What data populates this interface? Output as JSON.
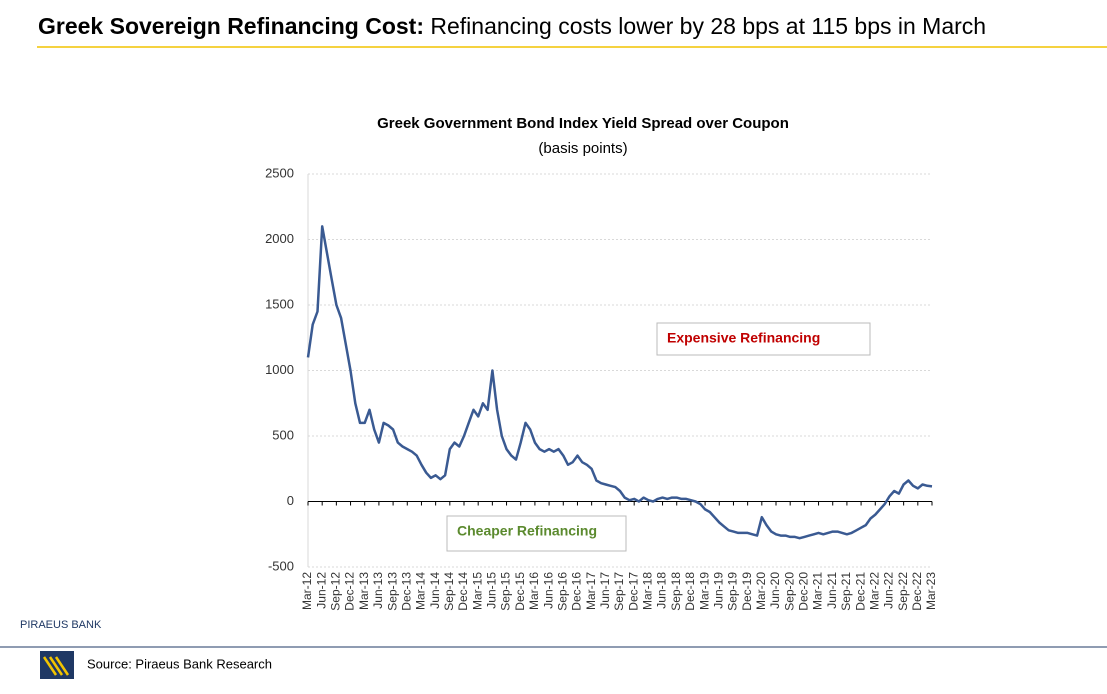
{
  "header": {
    "title": "Greek Sovereign Refinancing Cost:",
    "subtitle": "Refinancing costs lower by 28 bps at 115 bps in March"
  },
  "chart_data": {
    "type": "line",
    "title": "Greek Government Bond Index Yield Spread over Coupon",
    "subtitle": "(basis points)",
    "categories": [
      "Mar-12",
      null,
      null,
      "Jun-12",
      null,
      null,
      "Sep-12",
      null,
      null,
      "Dec-12",
      null,
      null,
      "Mar-13",
      null,
      null,
      "Jun-13",
      null,
      null,
      "Sep-13",
      null,
      null,
      "Dec-13",
      null,
      null,
      "Mar-14",
      null,
      null,
      "Jun-14",
      null,
      null,
      "Sep-14",
      null,
      null,
      "Dec-14",
      null,
      null,
      "Mar-15",
      null,
      null,
      "Jun-15",
      null,
      null,
      "Sep-15",
      null,
      null,
      "Dec-15",
      null,
      null,
      "Mar-16",
      null,
      null,
      "Jun-16",
      null,
      null,
      "Sep-16",
      null,
      null,
      "Dec-16",
      null,
      null,
      "Mar-17",
      null,
      null,
      "Jun-17",
      null,
      null,
      "Sep-17",
      null,
      null,
      "Dec-17",
      null,
      null,
      "Mar-18",
      null,
      null,
      "Jun-18",
      null,
      null,
      "Sep-18",
      null,
      null,
      "Dec-18",
      null,
      null,
      "Mar-19",
      null,
      null,
      "Jun-19",
      null,
      null,
      "Sep-19",
      null,
      null,
      "Dec-19",
      null,
      null,
      "Mar-20",
      null,
      null,
      "Jun-20",
      null,
      null,
      "Sep-20",
      null,
      null,
      "Dec-20",
      null,
      null,
      "Mar-21",
      null,
      null,
      "Jun-21",
      null,
      null,
      "Sep-21",
      null,
      null,
      "Dec-21",
      null,
      null,
      "Mar-22",
      null,
      null,
      "Jun-22",
      null,
      null,
      "Sep-22",
      null,
      null,
      "Dec-22",
      null,
      null,
      "Mar-23"
    ],
    "series": [
      {
        "name": "Spread",
        "color": "#3a5a92",
        "values": [
          1100,
          1350,
          1450,
          2100,
          1900,
          1700,
          1500,
          1400,
          1200,
          1000,
          750,
          600,
          600,
          700,
          550,
          450,
          600,
          580,
          550,
          450,
          420,
          400,
          380,
          350,
          280,
          220,
          180,
          200,
          170,
          200,
          400,
          450,
          420,
          500,
          600,
          700,
          650,
          750,
          700,
          1000,
          700,
          500,
          400,
          350,
          320,
          450,
          600,
          550,
          450,
          400,
          380,
          400,
          380,
          400,
          350,
          280,
          300,
          350,
          300,
          280,
          250,
          160,
          140,
          130,
          120,
          110,
          80,
          30,
          10,
          20,
          0,
          30,
          10,
          0,
          20,
          30,
          20,
          30,
          30,
          20,
          20,
          10,
          0,
          -20,
          -60,
          -80,
          -120,
          -160,
          -190,
          -220,
          -230,
          -240,
          -240,
          -240,
          -250,
          -260,
          -120,
          -180,
          -230,
          -250,
          -260,
          -260,
          -270,
          -270,
          -280,
          -270,
          -260,
          -250,
          -240,
          -250,
          -240,
          -230,
          -230,
          -240,
          -250,
          -240,
          -220,
          -200,
          -180,
          -130,
          -100,
          -60,
          -20,
          40,
          80,
          60,
          130,
          160,
          120,
          100,
          130,
          120,
          115
        ]
      }
    ],
    "ylim": [
      -500,
      2500
    ],
    "yticks": [
      -500,
      0,
      500,
      1000,
      1500,
      2000,
      2500
    ],
    "grid": true,
    "annotations": [
      "Expensive Refinancing",
      "Cheaper Refinancing"
    ]
  },
  "footer": {
    "brand": "PIRAEUS BANK",
    "source": "Source: Piraeus Bank Research"
  }
}
